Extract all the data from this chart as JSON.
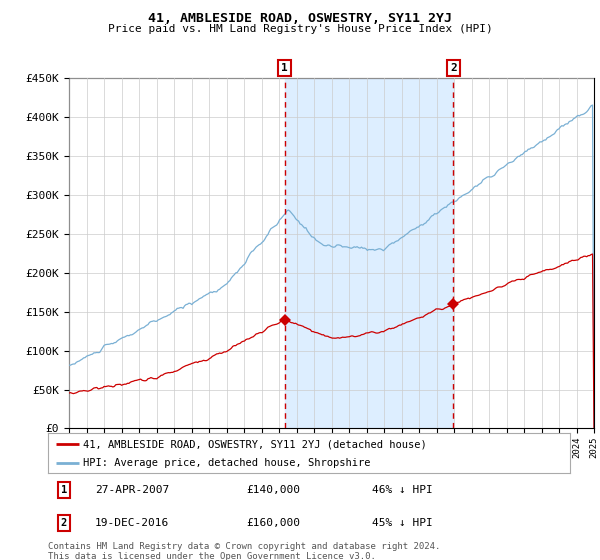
{
  "title": "41, AMBLESIDE ROAD, OSWESTRY, SY11 2YJ",
  "subtitle": "Price paid vs. HM Land Registry's House Price Index (HPI)",
  "legend_label_red": "41, AMBLESIDE ROAD, OSWESTRY, SY11 2YJ (detached house)",
  "legend_label_blue": "HPI: Average price, detached house, Shropshire",
  "transaction1_date": "27-APR-2007",
  "transaction1_price": 140000,
  "transaction1_pct": "46% ↓ HPI",
  "transaction2_date": "19-DEC-2016",
  "transaction2_price": 160000,
  "transaction2_pct": "45% ↓ HPI",
  "footnote": "Contains HM Land Registry data © Crown copyright and database right 2024.\nThis data is licensed under the Open Government Licence v3.0.",
  "ylim_min": 0,
  "ylim_max": 450000,
  "start_year": 1995,
  "end_year": 2025,
  "red_color": "#cc0000",
  "blue_color": "#7ab0d4",
  "shade_color": "#ddeeff",
  "grid_color": "#cccccc",
  "bg_color": "#ffffff",
  "marker1_year": 2007.32,
  "marker2_year": 2016.97
}
